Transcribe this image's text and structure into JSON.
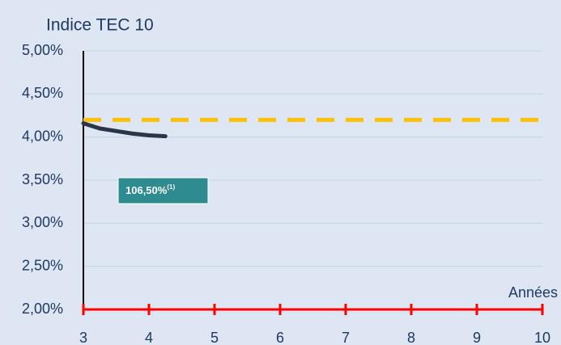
{
  "chart_data": {
    "type": "line",
    "title": "Indice TEC 10",
    "x_label": "Années",
    "annotation": {
      "text": "106,50%",
      "superscript": "(1)",
      "color": "#2e8b8f"
    },
    "series": [
      {
        "color": "#ffc000",
        "style": "dashed",
        "x": [
          3,
          10
        ],
        "values": [
          4.2,
          4.2
        ]
      },
      {
        "color": "#2b3548",
        "style": "solid",
        "x": [
          3,
          3.25,
          3.5,
          3.75,
          4,
          4.25
        ],
        "values": [
          4.16,
          4.1,
          4.07,
          4.04,
          4.02,
          4.01
        ]
      }
    ],
    "xlim": [
      3,
      10
    ],
    "xticks": [
      3,
      4,
      5,
      6,
      7,
      8,
      9,
      10
    ],
    "ylim": [
      2,
      5
    ],
    "yticks": [
      {
        "value": 2,
        "label": "2,00%"
      },
      {
        "value": 2.5,
        "label": "2,50%"
      },
      {
        "value": 3,
        "label": "3,00%"
      },
      {
        "value": 3.5,
        "label": "3,50%"
      },
      {
        "value": 4,
        "label": "4,00%"
      },
      {
        "value": 4.5,
        "label": "4,50%"
      },
      {
        "value": 5,
        "label": "5,00%"
      }
    ],
    "grid": true,
    "x_axis_color": "#ff0000"
  }
}
